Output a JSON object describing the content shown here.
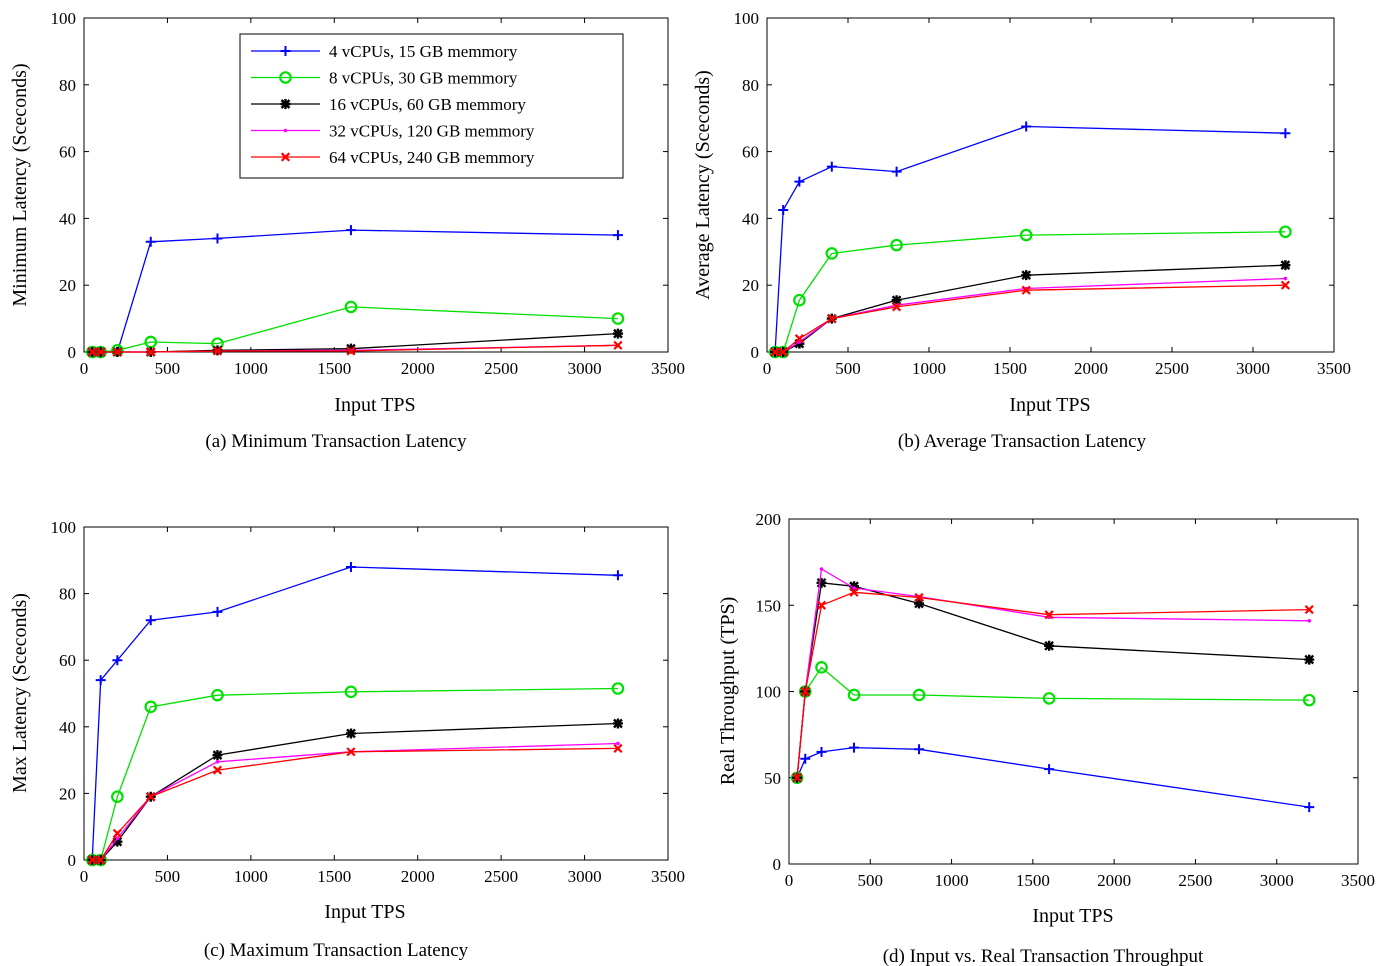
{
  "legend": [
    "4 vCPUs, 15 GB memmory",
    "8 vCPUs, 30 GB memmory",
    "16 vCPUs, 60 GB memmory",
    "32 vCPUs, 120 GB memmory",
    "64 vCPUs, 240 GB memmory"
  ],
  "series_colors": [
    "#0000ff",
    "#00e000",
    "#000000",
    "#ff00ff",
    "#ff0000"
  ],
  "chart_data": [
    {
      "type": "line",
      "caption": "(a) Minimum Transaction Latency",
      "xlabel": "Input TPS",
      "ylabel": "Minimum Latency (Sceconds)",
      "xlim": [
        0,
        3500
      ],
      "ylim": [
        0,
        100
      ],
      "xticks": [
        0,
        500,
        1000,
        1500,
        2000,
        2500,
        3000,
        3500
      ],
      "yticks": [
        0,
        20,
        40,
        60,
        80,
        100
      ],
      "legend_position": "top-right",
      "x": [
        50,
        100,
        200,
        400,
        800,
        1600,
        3200
      ],
      "series": [
        {
          "name": "4 vCPUs, 15 GB memmory",
          "values": [
            0,
            0,
            0,
            33,
            34,
            36.5,
            35
          ]
        },
        {
          "name": "8 vCPUs, 30 GB memmory",
          "values": [
            0,
            0,
            0.5,
            3,
            2.5,
            13.5,
            10
          ]
        },
        {
          "name": "16 vCPUs, 60 GB memmory",
          "values": [
            0,
            0,
            0,
            0,
            0.5,
            1,
            5.5
          ]
        },
        {
          "name": "32 vCPUs, 120 GB memmory",
          "values": [
            0,
            0,
            0,
            0,
            0.3,
            0.5,
            2
          ]
        },
        {
          "name": "64 vCPUs, 240 GB memmory",
          "values": [
            0,
            0,
            0,
            0,
            0.3,
            0.3,
            2
          ]
        }
      ]
    },
    {
      "type": "line",
      "caption": "(b) Average Transaction Latency",
      "xlabel": "Input TPS",
      "ylabel": "Average Latency (Sceconds)",
      "xlim": [
        0,
        3500
      ],
      "ylim": [
        0,
        100
      ],
      "xticks": [
        0,
        500,
        1000,
        1500,
        2000,
        2500,
        3000,
        3500
      ],
      "yticks": [
        0,
        20,
        40,
        60,
        80,
        100
      ],
      "x": [
        50,
        100,
        200,
        400,
        800,
        1600,
        3200
      ],
      "series": [
        {
          "name": "4 vCPUs, 15 GB memmory",
          "values": [
            0,
            42.5,
            51,
            55.5,
            54,
            67.5,
            65.5
          ]
        },
        {
          "name": "8 vCPUs, 30 GB memmory",
          "values": [
            0,
            0,
            15.5,
            29.5,
            32,
            35,
            36
          ]
        },
        {
          "name": "16 vCPUs, 60 GB memmory",
          "values": [
            0,
            0,
            2.5,
            10,
            15.5,
            23,
            26
          ]
        },
        {
          "name": "32 vCPUs, 120 GB memmory",
          "values": [
            0,
            0,
            3,
            10,
            14,
            19,
            22
          ]
        },
        {
          "name": "64 vCPUs, 240 GB memmory",
          "values": [
            0,
            0,
            4,
            10,
            13.5,
            18.5,
            20
          ]
        }
      ]
    },
    {
      "type": "line",
      "caption": "(c) Maximum Transaction Latency",
      "xlabel": "Input TPS",
      "ylabel": "Max Latency (Sceconds)",
      "xlim": [
        0,
        3500
      ],
      "ylim": [
        0,
        100
      ],
      "xticks": [
        0,
        500,
        1000,
        1500,
        2000,
        2500,
        3000,
        3500
      ],
      "yticks": [
        0,
        20,
        40,
        60,
        80,
        100
      ],
      "x": [
        50,
        100,
        200,
        400,
        800,
        1600,
        3200
      ],
      "series": [
        {
          "name": "4 vCPUs, 15 GB memmory",
          "values": [
            0.5,
            54,
            60,
            72,
            74.5,
            88,
            85.5
          ]
        },
        {
          "name": "8 vCPUs, 30 GB memmory",
          "values": [
            0,
            0,
            19,
            46,
            49.5,
            50.5,
            51.5
          ]
        },
        {
          "name": "16 vCPUs, 60 GB memmory",
          "values": [
            0,
            0,
            5.5,
            19,
            31.5,
            38,
            41
          ]
        },
        {
          "name": "32 vCPUs, 120 GB memmory",
          "values": [
            0,
            0,
            6.5,
            19,
            29.5,
            32.5,
            35
          ]
        },
        {
          "name": "64 vCPUs, 240 GB memmory",
          "values": [
            0,
            0,
            8,
            19,
            27,
            32.5,
            33.5
          ]
        }
      ]
    },
    {
      "type": "line",
      "caption": "(d) Input vs. Real Transaction Throughput",
      "xlabel": "Input TPS",
      "ylabel": "Real Throughput (TPS)",
      "xlim": [
        0,
        3500
      ],
      "ylim": [
        0,
        200
      ],
      "xticks": [
        0,
        500,
        1000,
        1500,
        2000,
        2500,
        3000,
        3500
      ],
      "yticks": [
        0,
        50,
        100,
        150,
        200
      ],
      "x": [
        50,
        100,
        200,
        400,
        800,
        1600,
        3200
      ],
      "series": [
        {
          "name": "4 vCPUs, 15 GB memmory",
          "values": [
            50,
            61,
            65,
            67.5,
            66.5,
            55,
            33
          ]
        },
        {
          "name": "8 vCPUs, 30 GB memmory",
          "values": [
            50,
            100,
            114,
            98,
            98,
            96,
            95
          ]
        },
        {
          "name": "16 vCPUs, 60 GB memmory",
          "values": [
            50,
            100,
            163,
            161,
            151,
            126.5,
            118.5
          ]
        },
        {
          "name": "32 vCPUs, 120 GB memmory",
          "values": [
            50,
            100,
            171,
            160,
            155,
            143,
            141
          ]
        },
        {
          "name": "64 vCPUs, 240 GB memmory",
          "values": [
            50,
            100,
            150,
            157.5,
            154.5,
            144.5,
            147.5
          ]
        }
      ]
    }
  ]
}
